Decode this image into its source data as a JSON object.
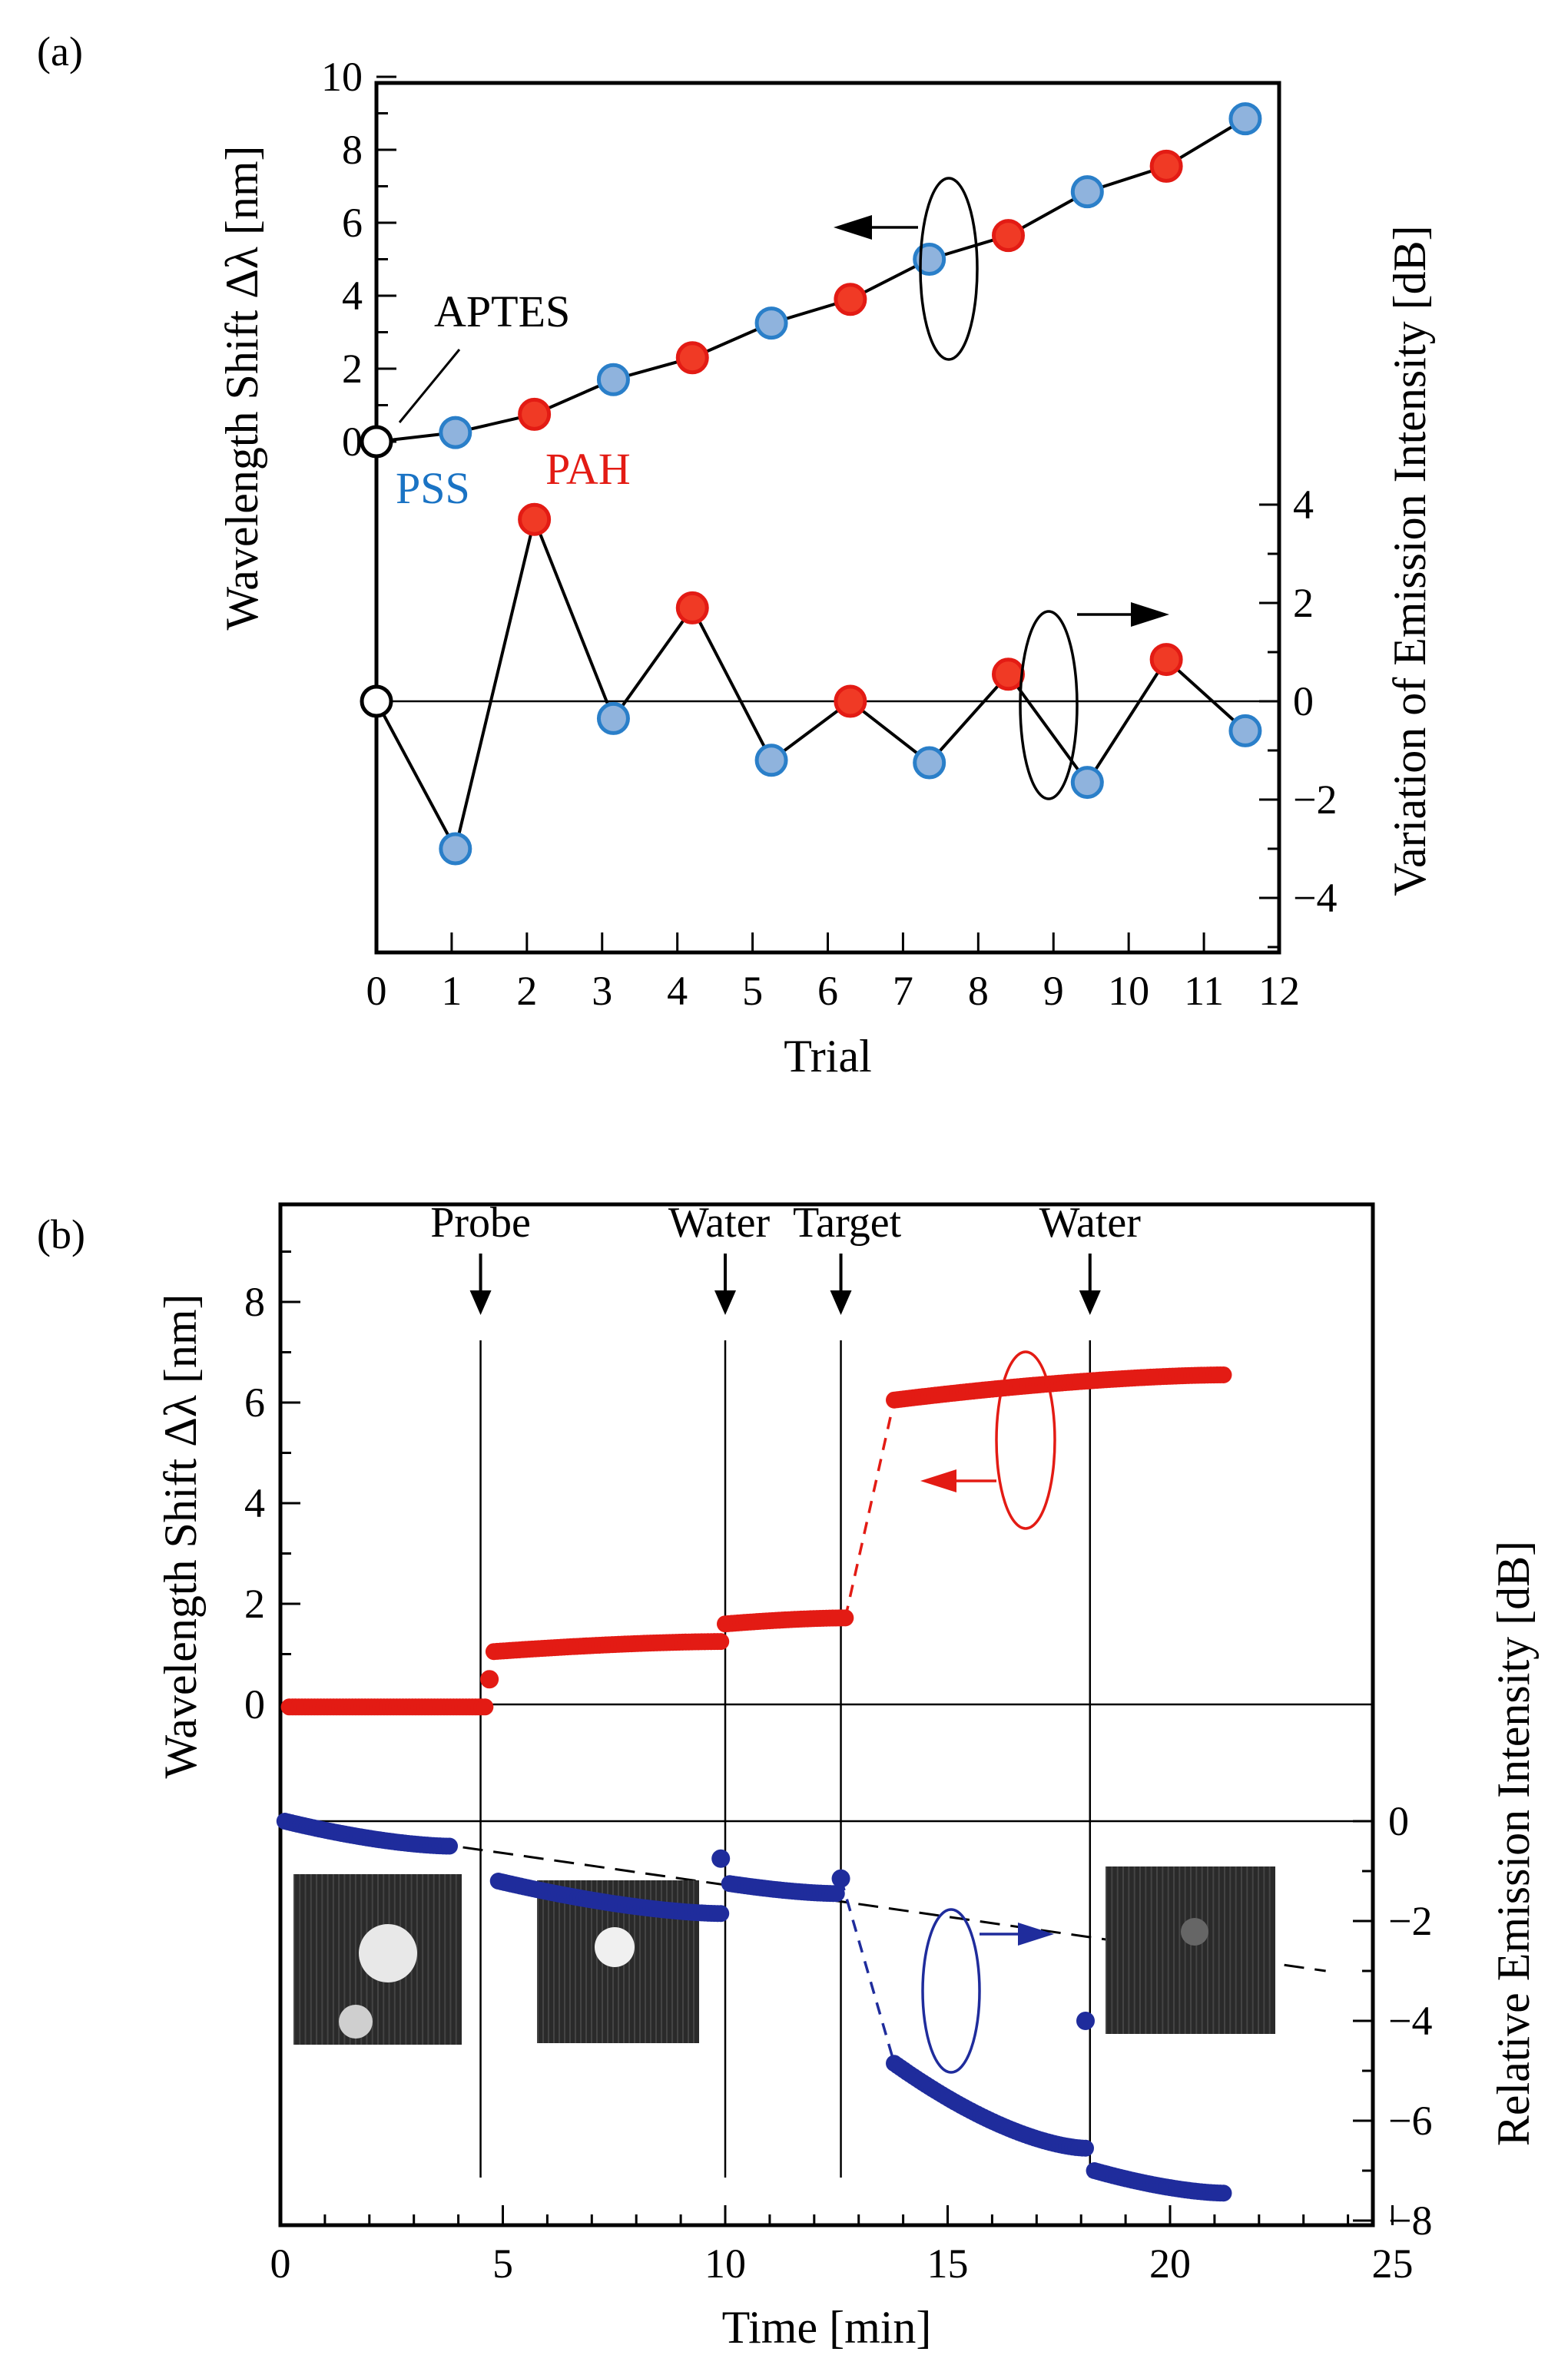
{
  "colors": {
    "pss_fill": "#8fb3dd",
    "pss_stroke": "#2a7fc9",
    "pah_fill": "#f03a25",
    "pah_stroke": "#e31b14",
    "red_series": "#e31b14",
    "blue_series": "#1f2c9c",
    "pss_label": "#1a73c4",
    "pah_label": "#e31b14"
  },
  "chart_data": [
    {
      "panel_label": "(a)",
      "type": "scatter",
      "xlabel": "Trial",
      "ylabel": "Wavelength Shift Δλ [nm]",
      "ylabel2": "Variation of Emission Intensity [dB]",
      "x_ticks": [
        "0",
        "1",
        "2",
        "3",
        "4",
        "5",
        "6",
        "7",
        "8",
        "9",
        "10",
        "11",
        "12"
      ],
      "y_ticks": [
        "10",
        "8",
        "6",
        "4",
        "2",
        "0"
      ],
      "y2_ticks": [
        "4",
        "2",
        "0",
        "−2",
        "−4"
      ],
      "xlim": [
        0,
        12
      ],
      "ylim_upper": [
        0,
        10
      ],
      "ylim_lower": [
        -5,
        6.5
      ],
      "annotations": {
        "aptes": "APTES",
        "pss": "PSS",
        "pah": "PAH"
      },
      "series": [
        {
          "axis": "left",
          "x": [
            0,
            1.05,
            2.1,
            3.15,
            4.2,
            5.25,
            6.3,
            7.35,
            8.4,
            9.45,
            10.5,
            11.55
          ],
          "y": [
            0,
            0.25,
            0.75,
            1.7,
            2.3,
            3.25,
            3.9,
            5.0,
            5.65,
            6.85,
            7.55,
            8.85
          ],
          "kinds": [
            "APTES",
            "PSS",
            "PAH",
            "PSS",
            "PAH",
            "PSS",
            "PAH",
            "PSS",
            "PAH",
            "PSS",
            "PAH",
            "PSS"
          ]
        },
        {
          "axis": "right",
          "x": [
            0,
            1.05,
            2.1,
            3.15,
            4.2,
            5.25,
            6.3,
            7.35,
            8.4,
            9.45,
            10.5,
            11.55
          ],
          "y": [
            0,
            -3.0,
            3.7,
            -0.35,
            1.9,
            -1.2,
            0.0,
            -1.25,
            0.55,
            -1.65,
            0.85,
            -0.6
          ],
          "kinds": [
            "APTES",
            "PSS",
            "PAH",
            "PSS",
            "PAH",
            "PSS",
            "PAH",
            "PSS",
            "PAH",
            "PSS",
            "PAH",
            "PSS"
          ]
        }
      ]
    },
    {
      "panel_label": "(b)",
      "type": "scatter",
      "xlabel": "Time [min]",
      "ylabel": "Wavelength Shift Δλ [nm]",
      "ylabel2": "Relative Emission Intensity [dB]",
      "x_ticks": [
        "0",
        "5",
        "10",
        "15",
        "20",
        "25"
      ],
      "y_ticks": [
        "8",
        "6",
        "4",
        "2",
        "0"
      ],
      "y2_ticks": [
        "0",
        "−2",
        "−4",
        "−6",
        "−8"
      ],
      "xlim": [
        0,
        25
      ],
      "ylim_upper": [
        0,
        10
      ],
      "ylim_lower": [
        -8.5,
        0
      ],
      "events": [
        {
          "label": "Probe",
          "t": 4.5
        },
        {
          "label": "Water",
          "t": 10.0
        },
        {
          "label": "Target",
          "t": 12.6
        },
        {
          "label": "Water",
          "t": 18.2
        }
      ],
      "series": [
        {
          "name": "",
          "axis": "left",
          "segments": [
            {
              "t0": 0.2,
              "t1": 4.6,
              "v0": -0.05,
              "v1": -0.05
            },
            {
              "t0": 4.8,
              "t1": 9.9,
              "v0": 1.05,
              "v1": 1.25
            },
            {
              "t0": 10.0,
              "t1": 12.7,
              "v0": 1.6,
              "v1": 1.72
            },
            {
              "t0": 13.8,
              "t1": 21.2,
              "v0": 6.05,
              "v1": 6.55
            }
          ],
          "extra_points": [
            {
              "t": 4.7,
              "v": 0.5
            }
          ],
          "dashed_links": [
            {
              "t0": 12.7,
              "v0": 1.72,
              "t1": 13.8,
              "v1": 6.05
            }
          ]
        },
        {
          "name": "",
          "axis": "right",
          "segments": [
            {
              "t0": 0.1,
              "t1": 3.8,
              "v0": 0.0,
              "v1": -0.5
            },
            {
              "t0": 4.9,
              "t1": 9.9,
              "v0": -1.2,
              "v1": -1.85
            },
            {
              "t0": 10.1,
              "t1": 12.5,
              "v0": -1.25,
              "v1": -1.45
            },
            {
              "t0": 13.8,
              "t1": 18.1,
              "v0": -4.85,
              "v1": -6.55
            },
            {
              "t0": 18.3,
              "t1": 21.2,
              "v0": -7.0,
              "v1": -7.45
            }
          ],
          "extra_points": [
            {
              "t": 9.9,
              "v": -0.75
            },
            {
              "t": 12.6,
              "v": -1.15
            },
            {
              "t": 18.1,
              "v": -4.0
            }
          ],
          "dashed_links": [
            {
              "t0": 12.6,
              "v0": -1.15,
              "t1": 13.8,
              "v1": -4.85
            }
          ],
          "baseline": {
            "t0": 0,
            "v0": 0,
            "t1": 23.5,
            "v1": -3.0
          }
        }
      ]
    }
  ]
}
